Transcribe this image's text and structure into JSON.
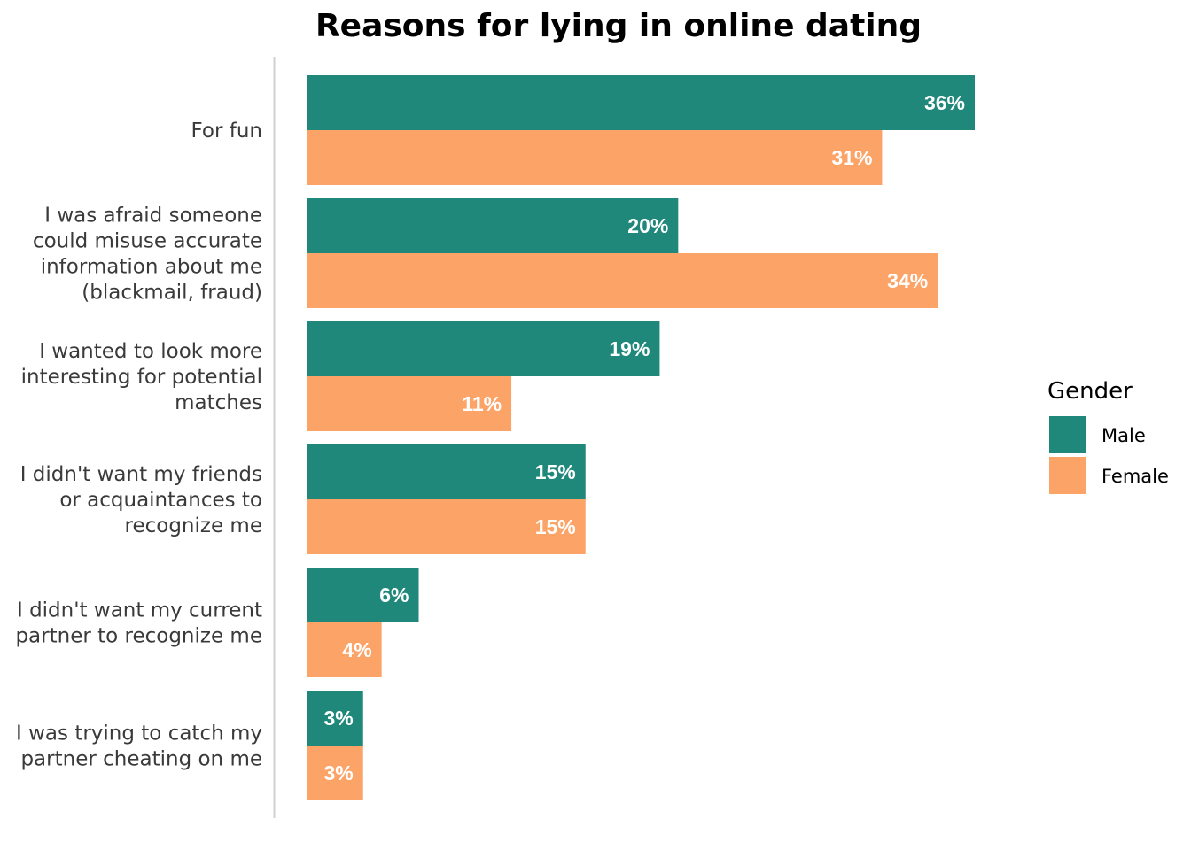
{
  "chart_data": {
    "type": "bar",
    "orientation": "horizontal",
    "title": "Reasons for lying in online dating",
    "categories": [
      [
        "For fun"
      ],
      [
        "I was afraid someone",
        "could misuse accurate",
        "information about me",
        "(blackmail, fraud)"
      ],
      [
        "I wanted to look more",
        "interesting for potential",
        "matches"
      ],
      [
        "I didn't want my friends",
        "or acquaintances to",
        "recognize me"
      ],
      [
        "I didn't want my current",
        "partner to recognize me"
      ],
      [
        "I was trying to catch my",
        "partner cheating on me"
      ]
    ],
    "series": [
      {
        "name": "Male",
        "color": "#1f887a",
        "values": [
          36,
          20,
          19,
          15,
          6,
          3
        ],
        "labels": [
          "36%",
          "20%",
          "19%",
          "15%",
          "6%",
          "3%"
        ]
      },
      {
        "name": "Female",
        "color": "#fca468",
        "values": [
          31,
          34,
          11,
          15,
          4,
          3
        ],
        "labels": [
          "31%",
          "34%",
          "11%",
          "15%",
          "4%",
          "3%"
        ]
      }
    ],
    "xlim": [
      0,
      36
    ],
    "legend": {
      "title": "Gender",
      "position": "right"
    },
    "grid": false
  }
}
